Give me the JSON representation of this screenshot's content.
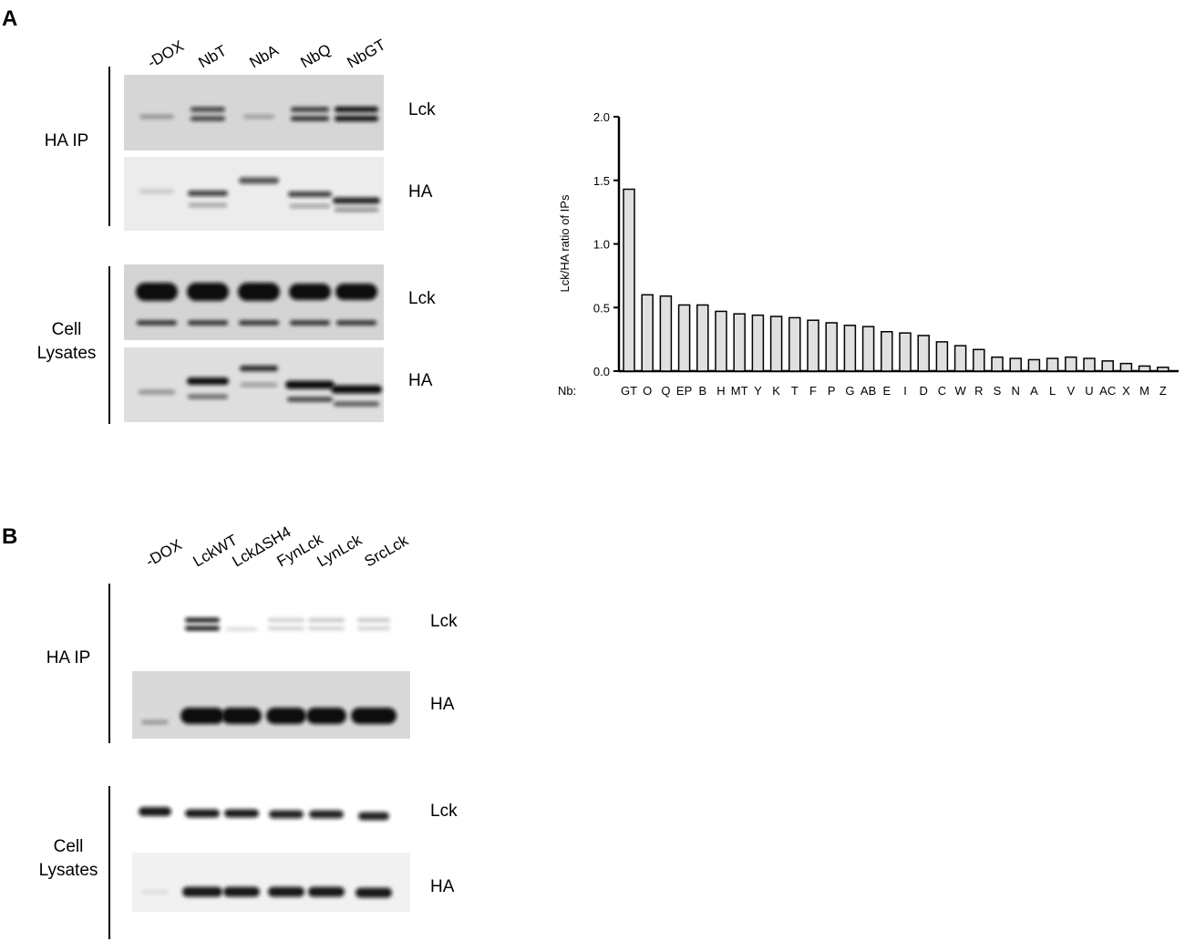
{
  "panel_a": {
    "label": "A",
    "lanes": [
      "-DOX",
      "NbT",
      "NbA",
      "NbQ",
      "NbGT"
    ],
    "groups": [
      {
        "label": [
          "HA IP"
        ],
        "rows": [
          "Lck",
          "HA"
        ]
      },
      {
        "label": [
          "Cell",
          "Lysates"
        ],
        "rows": [
          "Lck",
          "HA"
        ]
      }
    ]
  },
  "panel_b": {
    "label": "B",
    "lanes": [
      "-DOX",
      "LckWT",
      "LckΔSH4",
      "FynLck",
      "LynLck",
      "SrcLck"
    ],
    "groups": [
      {
        "label": [
          "HA IP"
        ],
        "rows": [
          "Lck",
          "HA"
        ]
      },
      {
        "label": [
          "Cell",
          "Lysates"
        ],
        "rows": [
          "Lck",
          "HA"
        ]
      }
    ]
  },
  "chart_data": {
    "type": "bar",
    "y_label": "Lck/HA ratio of IPs",
    "x_prefix": "Nb:",
    "categories": [
      "GT",
      "O",
      "Q",
      "EP",
      "B",
      "H",
      "MT",
      "Y",
      "K",
      "T",
      "F",
      "P",
      "G",
      "AB",
      "E",
      "I",
      "D",
      "C",
      "W",
      "R",
      "S",
      "N",
      "A",
      "L",
      "V",
      "U",
      "AC",
      "X",
      "M",
      "Z"
    ],
    "values": [
      1.43,
      0.6,
      0.59,
      0.52,
      0.52,
      0.47,
      0.45,
      0.44,
      0.43,
      0.42,
      0.4,
      0.38,
      0.36,
      0.35,
      0.31,
      0.3,
      0.28,
      0.23,
      0.2,
      0.17,
      0.11,
      0.1,
      0.09,
      0.1,
      0.11,
      0.1,
      0.08,
      0.06,
      0.04,
      0.03
    ],
    "color": "#e0e0e0",
    "ylim": [
      0,
      2.0
    ],
    "yticks": [
      {
        "value": 0,
        "label": "0.0"
      },
      {
        "value": 0.5,
        "label": "0.5"
      },
      {
        "value": 1.0,
        "label": "1.0"
      },
      {
        "value": 1.5,
        "label": "1.5"
      },
      {
        "value": 2.0,
        "label": "2.0"
      }
    ]
  }
}
